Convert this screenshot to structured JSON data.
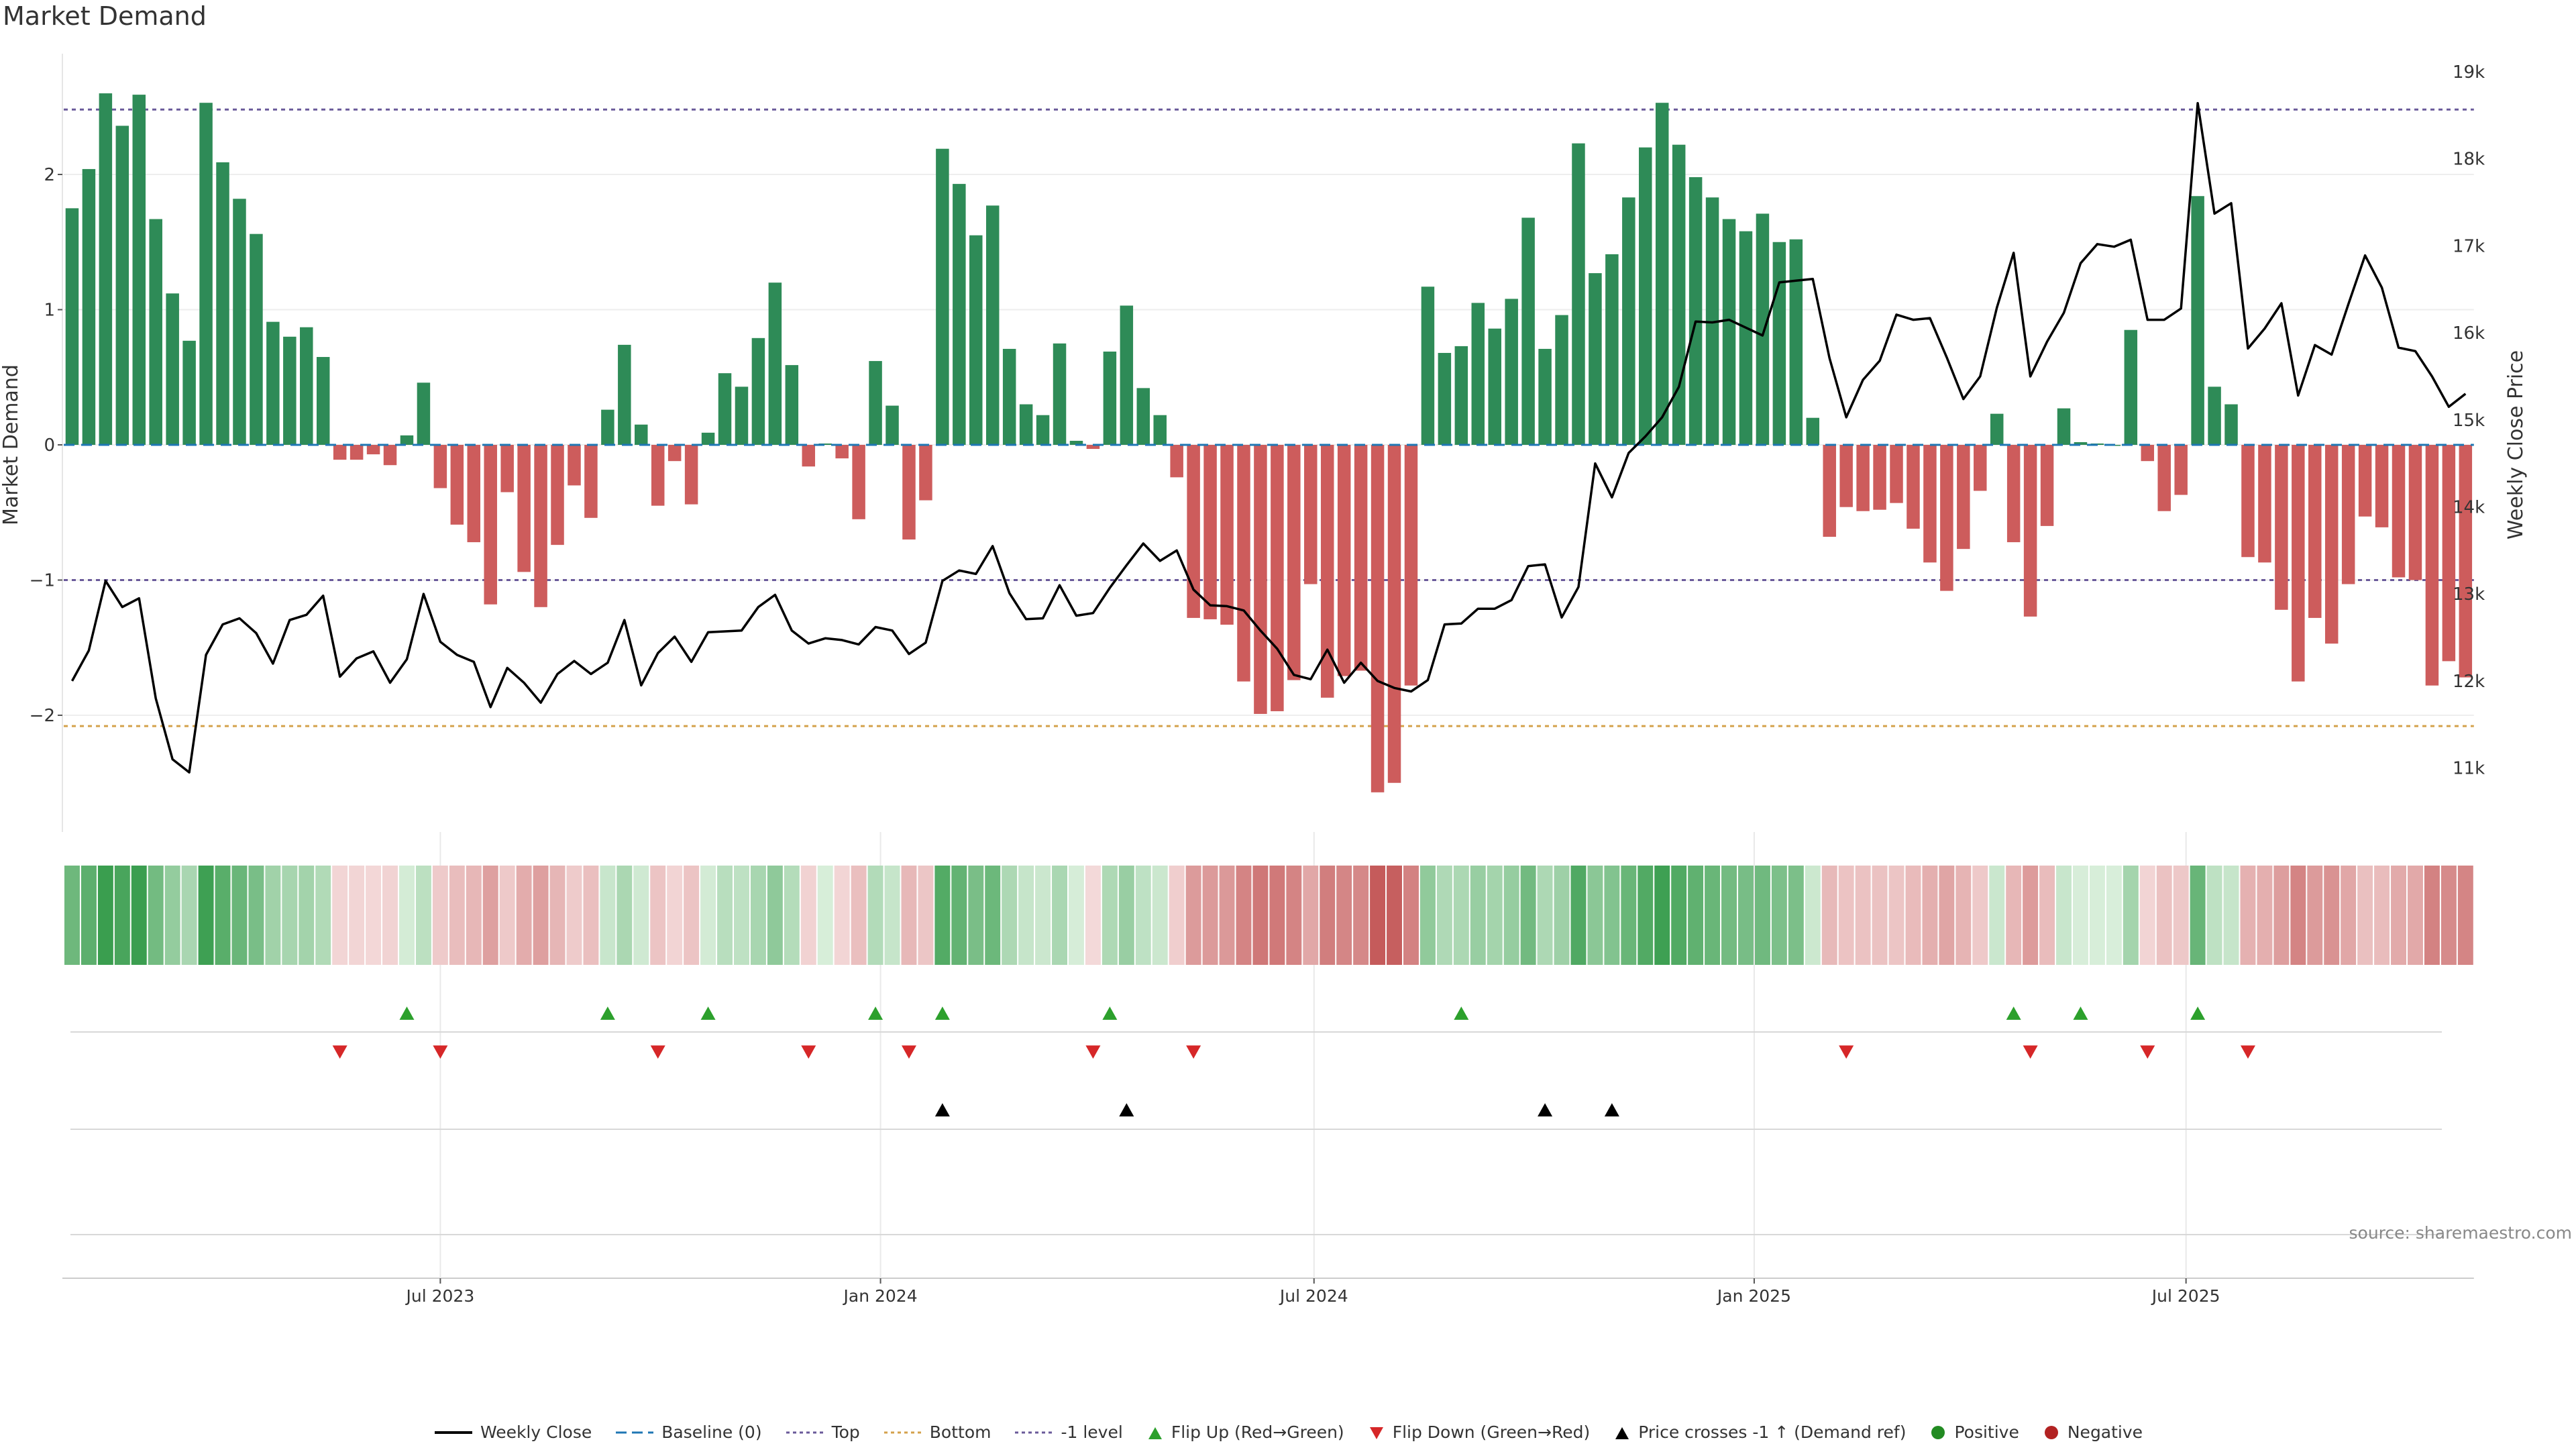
{
  "page": {
    "title": "Market Demand",
    "source": "source: sharemaestro.com"
  },
  "colors": {
    "pos_bar": "#2e8b57",
    "neg_bar": "#cd5c5c",
    "price": "#000000",
    "top_line": "#6a5a9a",
    "bottom_line": "#d4a24c",
    "minus1_line": "#6a5a9a",
    "flip_up": "#2ca02c",
    "flip_down": "#d62728",
    "cross": "#000000",
    "positive": "#228b22",
    "negative": "#b22222",
    "baseline": "#1f77b4"
  },
  "legend": [
    {
      "label": "Weekly Close",
      "marker": "solid-line",
      "color": "#000000"
    },
    {
      "label": "Baseline (0)",
      "marker": "dashed-line",
      "color": "#1f77b4"
    },
    {
      "label": "Top",
      "marker": "dotted-line",
      "color": "#6a5a9a"
    },
    {
      "label": "Bottom",
      "marker": "dotted-line",
      "color": "#d4a24c"
    },
    {
      "label": "-1 level",
      "marker": "dotted-line",
      "color": "#6a5a9a"
    },
    {
      "label": "Flip Up (Red→Green)",
      "marker": "triangle-up",
      "color": "#2ca02c"
    },
    {
      "label": "Flip Down (Green→Red)",
      "marker": "triangle-down",
      "color": "#d62728"
    },
    {
      "label": "Price crosses -1 ↑ (Demand ref)",
      "marker": "triangle-up",
      "color": "#000000"
    },
    {
      "label": "Positive",
      "marker": "circle",
      "color": "#228b22"
    },
    {
      "label": "Negative",
      "marker": "circle",
      "color": "#b22222"
    }
  ],
  "chart_data": {
    "type": "bar",
    "title": "Market Demand",
    "ylabel": "Market Demand",
    "y2label": "Weekly Close Price",
    "ylim": [
      -2.9,
      2.9
    ],
    "y2lim": [
      10300,
      19250
    ],
    "y_ticks": [
      {
        "value": 2,
        "label": "2"
      },
      {
        "value": 1,
        "label": "1"
      },
      {
        "value": 0,
        "label": "0"
      },
      {
        "value": -1,
        "label": "−1"
      },
      {
        "value": -2,
        "label": "−2"
      }
    ],
    "y2_ticks": [
      {
        "value": 19000,
        "label": "19k"
      },
      {
        "value": 18000,
        "label": "18k"
      },
      {
        "value": 17000,
        "label": "17k"
      },
      {
        "value": 16000,
        "label": "16k"
      },
      {
        "value": 15000,
        "label": "15k"
      },
      {
        "value": 14000,
        "label": "14k"
      },
      {
        "value": 13000,
        "label": "13k"
      },
      {
        "value": 12000,
        "label": "12k"
      },
      {
        "value": 11000,
        "label": "11k"
      }
    ],
    "x_ticks": [
      {
        "week": 22,
        "label": "Jul 2023"
      },
      {
        "week": 48.3,
        "label": "Jan 2024"
      },
      {
        "week": 74.2,
        "label": "Jul 2024"
      },
      {
        "week": 100.5,
        "label": "Jan 2025"
      },
      {
        "week": 126.3,
        "label": "Jul 2025"
      }
    ],
    "reference_lines": {
      "top": 2.48,
      "bottom": -2.08,
      "minus1": -1.0,
      "baseline": 0
    },
    "weeks": 144,
    "demand": [
      1.75,
      2.04,
      2.6,
      2.36,
      2.59,
      1.67,
      1.12,
      0.77,
      2.53,
      2.09,
      1.82,
      1.56,
      0.91,
      0.8,
      0.87,
      0.65,
      -0.11,
      -0.11,
      -0.07,
      -0.15,
      0.07,
      0.46,
      -0.32,
      -0.59,
      -0.72,
      -1.18,
      -0.35,
      -0.94,
      -1.2,
      -0.74,
      -0.3,
      -0.54,
      0.26,
      0.74,
      0.15,
      -0.45,
      -0.12,
      -0.44,
      0.09,
      0.53,
      0.43,
      0.79,
      1.2,
      0.59,
      -0.16,
      0.01,
      -0.1,
      -0.55,
      0.62,
      0.29,
      -0.7,
      -0.41,
      2.19,
      1.93,
      1.55,
      1.77,
      0.71,
      0.3,
      0.22,
      0.75,
      0.03,
      -0.03,
      0.69,
      1.03,
      0.42,
      0.22,
      -0.24,
      -1.28,
      -1.29,
      -1.33,
      -1.75,
      -1.99,
      -1.97,
      -1.74,
      -1.03,
      -1.87,
      -1.71,
      -1.67,
      -2.57,
      -2.5,
      -1.78,
      1.17,
      0.68,
      0.73,
      1.05,
      0.86,
      1.08,
      1.68,
      0.71,
      0.96,
      2.23,
      1.27,
      1.41,
      1.83,
      2.2,
      2.53,
      2.22,
      1.98,
      1.83,
      1.67,
      1.58,
      1.71,
      1.5,
      1.52,
      0.2,
      -0.68,
      -0.46,
      -0.49,
      -0.48,
      -0.43,
      -0.62,
      -0.87,
      -1.08,
      -0.77,
      -0.34,
      0.23,
      -0.72,
      -1.27,
      -0.6,
      0.27,
      0.02,
      0.01,
      0.0,
      0.85,
      -0.12,
      -0.49,
      -0.37,
      1.84,
      0.43,
      0.3,
      -0.83,
      -0.87,
      -1.22,
      -1.75,
      -1.28,
      -1.47,
      -1.03,
      -0.53,
      -0.61,
      -0.98,
      -1.0,
      -1.78,
      -1.6,
      -1.72
    ],
    "price": [
      12000,
      12350,
      13150,
      12850,
      12950,
      11800,
      11100,
      10950,
      12300,
      12650,
      12720,
      12550,
      12200,
      12700,
      12760,
      12980,
      12050,
      12260,
      12340,
      11980,
      12250,
      13000,
      12450,
      12300,
      12220,
      11700,
      12150,
      11980,
      11750,
      12080,
      12230,
      12080,
      12210,
      12700,
      11950,
      12320,
      12510,
      12220,
      12560,
      12570,
      12580,
      12850,
      12990,
      12580,
      12430,
      12490,
      12470,
      12420,
      12620,
      12580,
      12310,
      12440,
      13150,
      13270,
      13230,
      13550,
      13010,
      12710,
      12720,
      13100,
      12750,
      12780,
      13070,
      13330,
      13580,
      13380,
      13500,
      13050,
      12870,
      12860,
      12810,
      12580,
      12370,
      12070,
      12020,
      12360,
      11980,
      12210,
      12000,
      11920,
      11880,
      12010,
      12650,
      12660,
      12830,
      12830,
      12930,
      13320,
      13340,
      12730,
      13080,
      14500,
      14110,
      14620,
      14810,
      15030,
      15380,
      16130,
      16120,
      16150,
      16060,
      15970,
      16580,
      16600,
      16620,
      15710,
      15030,
      15460,
      15680,
      16210,
      16150,
      16170,
      15720,
      15240,
      15500,
      16290,
      16920,
      15500,
      15900,
      16230,
      16800,
      17020,
      16990,
      17070,
      16150,
      16150,
      16280,
      18640,
      17370,
      17490,
      15820,
      16050,
      16340,
      15280,
      15860,
      15750,
      16330,
      16890,
      16520,
      15830,
      15790,
      15500,
      15150,
      15300
    ],
    "flip_up_weeks": [
      20,
      32,
      38,
      48,
      52,
      62,
      83,
      116,
      120,
      127
    ],
    "flip_down_weeks": [
      16,
      22,
      35,
      44,
      50,
      61,
      67,
      106,
      117,
      124,
      130
    ],
    "price_cross_weeks": [
      52,
      63,
      88,
      92
    ]
  }
}
